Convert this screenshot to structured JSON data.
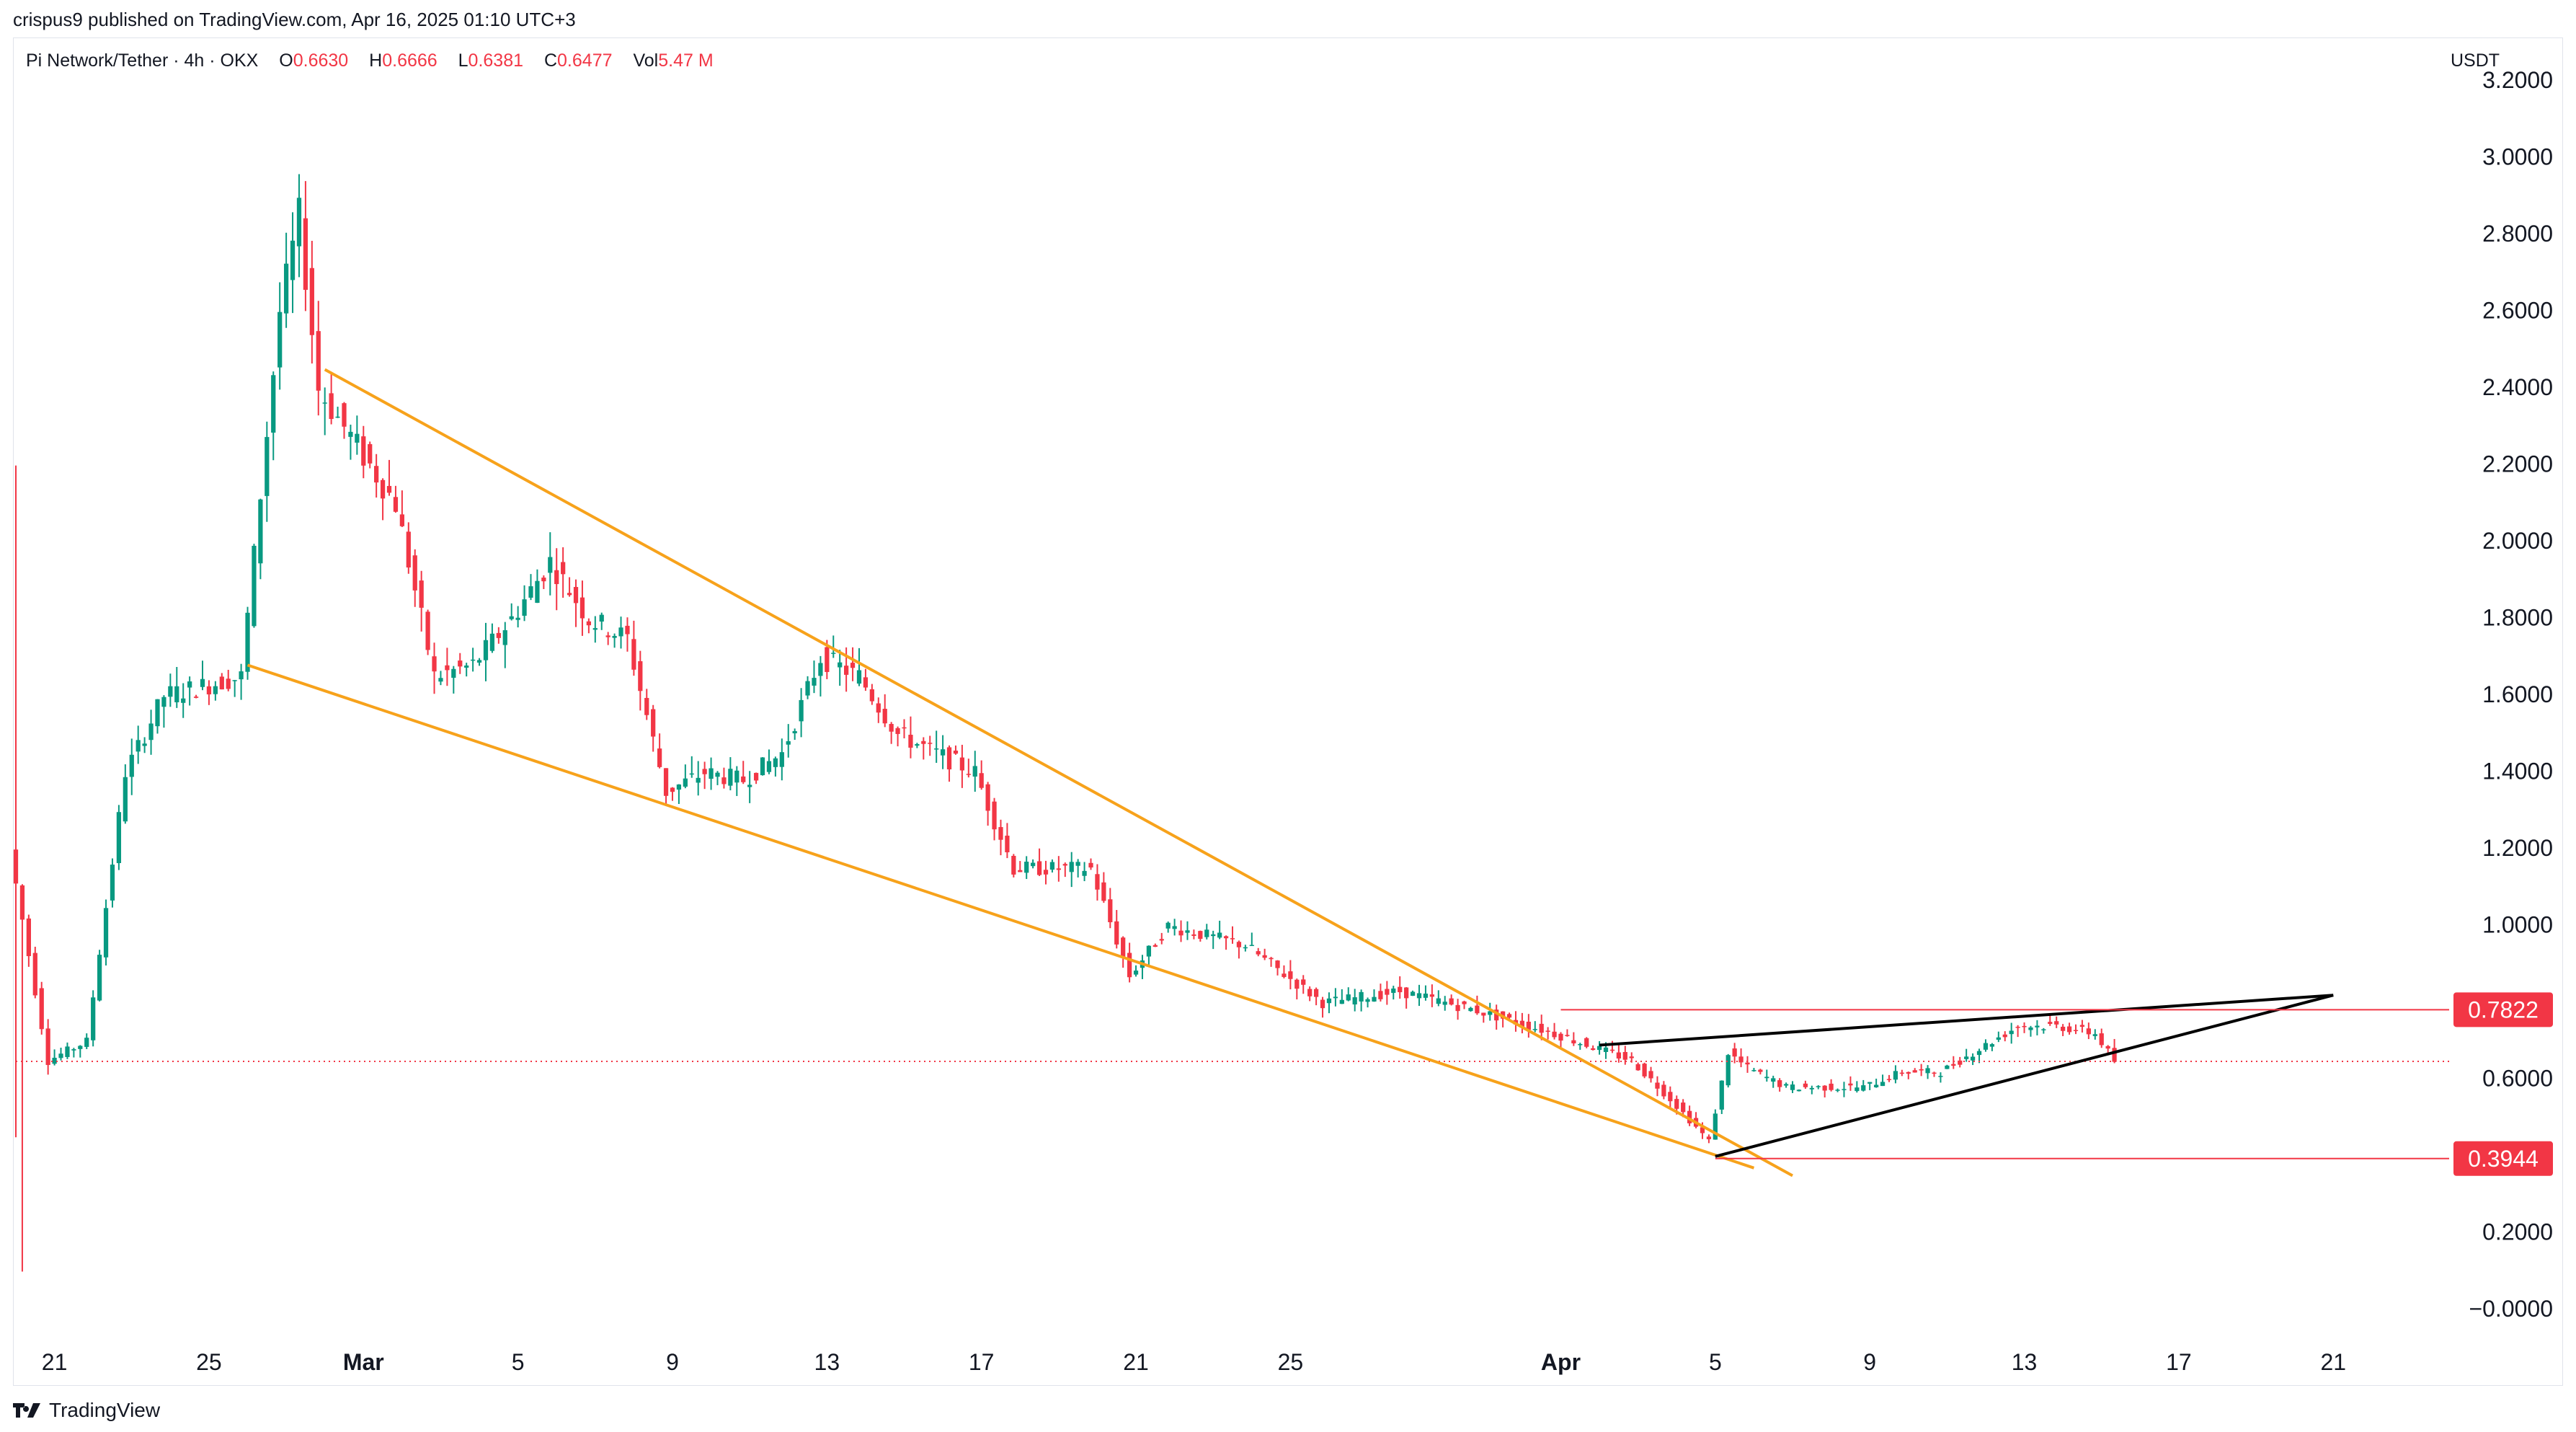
{
  "header": {
    "published": "crispus9 published on TradingView.com, Apr 16, 2025 01:10 UTC+3"
  },
  "legend": {
    "symbol": "Pi Network/Tether · 4h · OKX",
    "open_label": "O",
    "open": "0.6630",
    "high_label": "H",
    "high": "0.6666",
    "low_label": "L",
    "low": "0.6381",
    "close_label": "C",
    "close": "0.6477",
    "vol_label": "Vol",
    "vol": "5.47 M"
  },
  "price_axis": {
    "unit": "USDT"
  },
  "footer": {
    "brand": "TradingView"
  },
  "colors": {
    "up": "#089981",
    "down": "#f23645",
    "wedge": "#f7a21b",
    "pattern": "#000000",
    "level": "#f23645",
    "grid": "#f0f3fa",
    "text": "#131722"
  },
  "chart_data": {
    "type": "candlestick",
    "title": "Pi Network/Tether · 4h · OKX",
    "ylim": [
      -0.1,
      3.3
    ],
    "y_ticks": [
      "3.2000",
      "3.0000",
      "2.8000",
      "2.6000",
      "2.4000",
      "2.2000",
      "2.0000",
      "1.8000",
      "1.6000",
      "1.4000",
      "1.2000",
      "1.0000",
      "0.6000",
      "0.2000",
      "−0.0000"
    ],
    "y_tick_values": [
      3.2,
      3.0,
      2.8,
      2.6,
      2.4,
      2.2,
      2.0,
      1.8,
      1.6,
      1.4,
      1.2,
      1.0,
      0.6,
      0.2,
      0.0
    ],
    "xlim": [
      "2025-02-20",
      "2025-04-24"
    ],
    "x_ticks": [
      {
        "label": "21",
        "date": "2025-02-21"
      },
      {
        "label": "25",
        "date": "2025-02-25"
      },
      {
        "label": "Mar",
        "date": "2025-03-01"
      },
      {
        "label": "5",
        "date": "2025-03-05"
      },
      {
        "label": "9",
        "date": "2025-03-09"
      },
      {
        "label": "13",
        "date": "2025-03-13"
      },
      {
        "label": "17",
        "date": "2025-03-17"
      },
      {
        "label": "21",
        "date": "2025-03-21"
      },
      {
        "label": "25",
        "date": "2025-03-25"
      },
      {
        "label": "Apr",
        "date": "2025-04-01"
      },
      {
        "label": "5",
        "date": "2025-04-05"
      },
      {
        "label": "9",
        "date": "2025-04-09"
      },
      {
        "label": "13",
        "date": "2025-04-13"
      },
      {
        "label": "17",
        "date": "2025-04-17"
      },
      {
        "label": "21",
        "date": "2025-04-21"
      }
    ],
    "price_labels": [
      {
        "text": "0.7822",
        "value": 0.7822
      },
      {
        "text": "0.3944",
        "value": 0.3944
      }
    ],
    "current_price": 0.6477,
    "key_points": [
      {
        "date": "2025-02-20",
        "close": 1.2
      },
      {
        "date": "2025-02-21",
        "close": 0.65
      },
      {
        "date": "2025-02-22",
        "close": 0.7
      },
      {
        "date": "2025-02-23",
        "close": 1.4
      },
      {
        "date": "2025-02-24",
        "close": 1.6
      },
      {
        "date": "2025-02-26",
        "close": 1.65
      },
      {
        "date": "2025-02-27",
        "close": 2.6
      },
      {
        "date": "2025-02-27",
        "close": 2.85
      },
      {
        "date": "2025-02-28",
        "close": 2.4
      },
      {
        "date": "2025-03-02",
        "close": 2.1
      },
      {
        "date": "2025-03-03",
        "close": 1.65
      },
      {
        "date": "2025-03-04",
        "close": 1.68
      },
      {
        "date": "2025-03-05",
        "close": 1.8
      },
      {
        "date": "2025-03-06",
        "close": 1.95
      },
      {
        "date": "2025-03-07",
        "close": 1.8
      },
      {
        "date": "2025-03-08",
        "close": 1.75
      },
      {
        "date": "2025-03-09",
        "close": 1.35
      },
      {
        "date": "2025-03-10",
        "close": 1.4
      },
      {
        "date": "2025-03-11",
        "close": 1.38
      },
      {
        "date": "2025-03-12",
        "close": 1.45
      },
      {
        "date": "2025-03-13",
        "close": 1.7
      },
      {
        "date": "2025-03-14",
        "close": 1.65
      },
      {
        "date": "2025-03-15",
        "close": 1.5
      },
      {
        "date": "2025-03-16",
        "close": 1.45
      },
      {
        "date": "2025-03-17",
        "close": 1.4
      },
      {
        "date": "2025-03-18",
        "close": 1.15
      },
      {
        "date": "2025-03-19",
        "close": 1.15
      },
      {
        "date": "2025-03-20",
        "close": 1.15
      },
      {
        "date": "2025-03-21",
        "close": 0.87
      },
      {
        "date": "2025-03-22",
        "close": 1.0
      },
      {
        "date": "2025-03-24",
        "close": 0.95
      },
      {
        "date": "2025-03-26",
        "close": 0.8
      },
      {
        "date": "2025-03-28",
        "close": 0.83
      },
      {
        "date": "2025-03-30",
        "close": 0.78
      },
      {
        "date": "2025-04-01",
        "close": 0.72
      },
      {
        "date": "2025-04-03",
        "close": 0.65
      },
      {
        "date": "2025-04-04",
        "close": 0.55
      },
      {
        "date": "2025-04-05",
        "close": 0.44
      },
      {
        "date": "2025-04-05",
        "close": 0.67
      },
      {
        "date": "2025-04-06",
        "close": 0.63
      },
      {
        "date": "2025-04-07",
        "close": 0.58
      },
      {
        "date": "2025-04-09",
        "close": 0.58
      },
      {
        "date": "2025-04-10",
        "close": 0.62
      },
      {
        "date": "2025-04-11",
        "close": 0.62
      },
      {
        "date": "2025-04-12",
        "close": 0.68
      },
      {
        "date": "2025-04-13",
        "close": 0.74
      },
      {
        "date": "2025-04-14",
        "close": 0.74
      },
      {
        "date": "2025-04-15",
        "close": 0.72
      },
      {
        "date": "2025-04-15",
        "close": 0.6477
      }
    ],
    "trendlines": [
      {
        "name": "falling wedge upper",
        "from": {
          "date": "2025-02-28",
          "value": 2.45
        },
        "to": {
          "date": "2025-04-07",
          "value": 0.35
        }
      },
      {
        "name": "falling wedge lower",
        "from": {
          "date": "2025-02-26",
          "value": 1.68
        },
        "to": {
          "date": "2025-04-06",
          "value": 0.37
        }
      },
      {
        "name": "rising wedge upper",
        "from": {
          "date": "2025-04-02",
          "value": 0.69
        },
        "to": {
          "date": "2025-04-21",
          "value": 0.82
        }
      },
      {
        "name": "rising wedge lower",
        "from": {
          "date": "2025-04-05",
          "value": 0.4
        },
        "to": {
          "date": "2025-04-21",
          "value": 0.82
        }
      },
      {
        "name": "support level",
        "from": {
          "date": "2025-04-05",
          "value": 0.3944
        },
        "to": {
          "date": "2025-04-24",
          "value": 0.3944
        }
      },
      {
        "name": "resistance level",
        "from": {
          "date": "2025-04-01",
          "value": 0.7822
        },
        "to": {
          "date": "2025-04-24",
          "value": 0.7822
        }
      }
    ],
    "grid": false
  }
}
